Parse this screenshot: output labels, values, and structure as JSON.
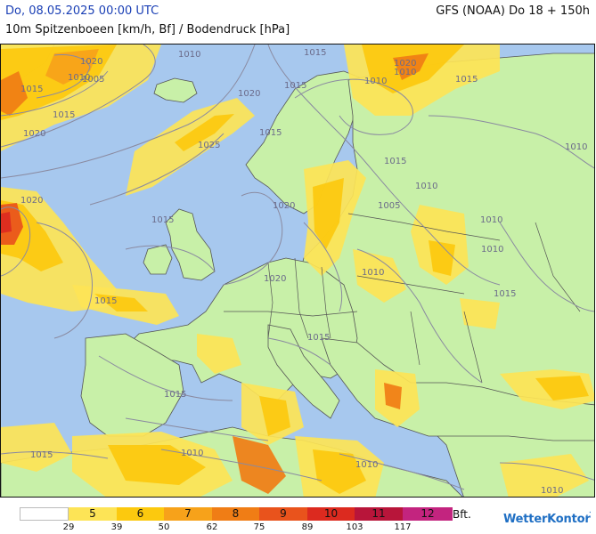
{
  "header": {
    "title_left": "Do, 08.05.2025 00:00 UTC",
    "title_right": "GFS (NOAA) Do 18 + 150h",
    "subtitle": "10m Spitzenboeen [km/h, Bf] / Bodendruck [hPa]"
  },
  "colors": {
    "sea": "#a7c8ee",
    "land": "#c8f0a8",
    "border": "#555555",
    "isobar": "#8a8aa0"
  },
  "isobar_labels": [
    "1020",
    "1005",
    "1015",
    "1020",
    "1015",
    "1010",
    "1020",
    "1015",
    "1010",
    "1025",
    "1020",
    "1015",
    "1020",
    "1005",
    "1015",
    "1020",
    "1015",
    "1010",
    "1015",
    "1020",
    "1010",
    "1015",
    "1010",
    "1015",
    "1015",
    "1010",
    "1010",
    "1015",
    "1010",
    "1010",
    "1015",
    "1010",
    "1015",
    "1010",
    "1010"
  ],
  "legend": {
    "items": [
      {
        "label": "",
        "color": "#ffffff"
      },
      {
        "label": "5",
        "color": "#fde456"
      },
      {
        "label": "6",
        "color": "#fcc90e"
      },
      {
        "label": "7",
        "color": "#f7a21a"
      },
      {
        "label": "8",
        "color": "#f07d15"
      },
      {
        "label": "9",
        "color": "#e9531c"
      },
      {
        "label": "10",
        "color": "#dc2a1f"
      },
      {
        "label": "11",
        "color": "#b8153a"
      },
      {
        "label": "12",
        "color": "#c3247f"
      }
    ],
    "ticks": [
      "29",
      "39",
      "50",
      "62",
      "75",
      "89",
      "103",
      "117"
    ],
    "unit": "Bft."
  },
  "brand": {
    "name": "WetterKontor",
    "mark": "⋰"
  }
}
